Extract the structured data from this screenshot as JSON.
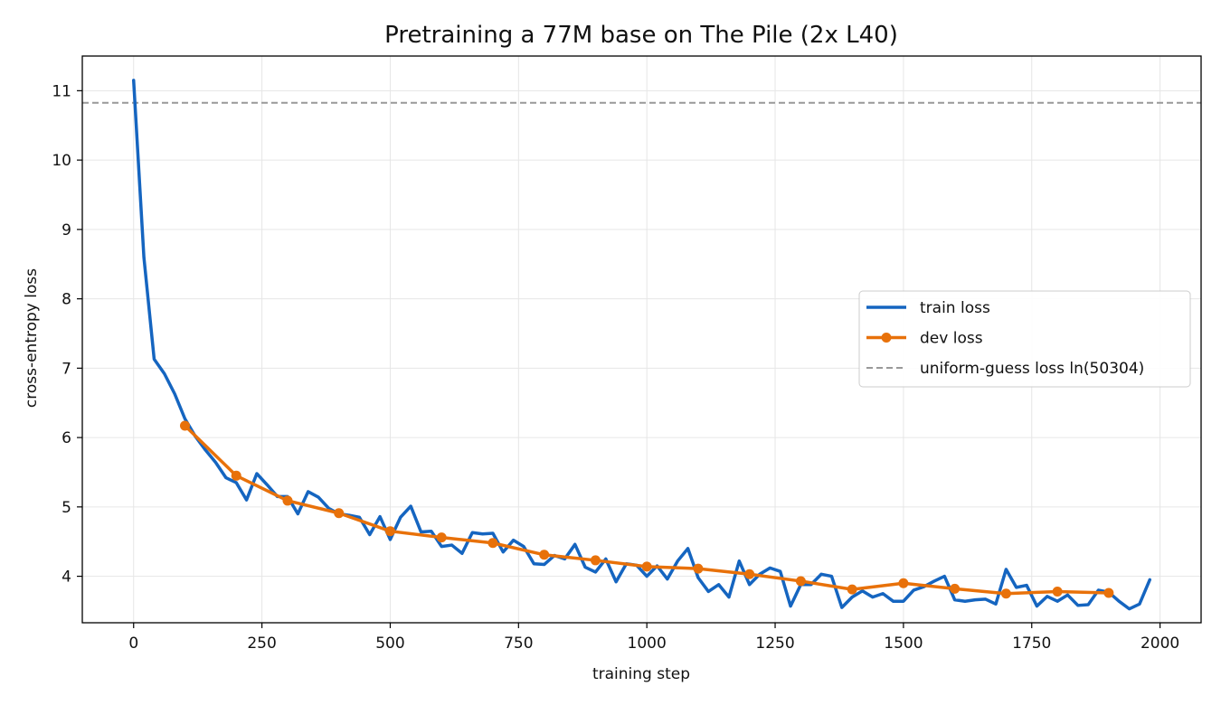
{
  "chart_data": {
    "type": "line",
    "title": "Pretraining a 77M base on The Pile (2x L40)",
    "xlabel": "training step",
    "ylabel": "cross-entropy loss",
    "xlim": [
      -100,
      2080
    ],
    "ylim": [
      3.33,
      11.5
    ],
    "xticks": [
      0,
      250,
      500,
      750,
      1000,
      1250,
      1500,
      1750,
      2000
    ],
    "yticks": [
      4,
      5,
      6,
      7,
      8,
      9,
      10,
      11
    ],
    "grid": true,
    "legend_position": "center-right",
    "series": [
      {
        "name": "train loss",
        "color": "#1565c0",
        "marker": "none",
        "x": [
          0,
          20,
          40,
          60,
          80,
          100,
          120,
          140,
          160,
          180,
          200,
          220,
          240,
          260,
          280,
          300,
          320,
          340,
          360,
          380,
          400,
          420,
          440,
          460,
          480,
          500,
          520,
          540,
          560,
          580,
          600,
          620,
          640,
          660,
          680,
          700,
          720,
          740,
          760,
          780,
          800,
          820,
          840,
          860,
          880,
          900,
          920,
          940,
          960,
          980,
          1000,
          1020,
          1040,
          1060,
          1080,
          1100,
          1120,
          1140,
          1160,
          1180,
          1200,
          1220,
          1240,
          1260,
          1280,
          1300,
          1320,
          1340,
          1360,
          1380,
          1400,
          1420,
          1440,
          1460,
          1480,
          1500,
          1520,
          1540,
          1560,
          1580,
          1600,
          1620,
          1640,
          1660,
          1680,
          1700,
          1720,
          1740,
          1760,
          1780,
          1800,
          1820,
          1840,
          1860,
          1880,
          1900,
          1920,
          1940,
          1960,
          1980
        ],
        "y": [
          11.15,
          8.6,
          7.13,
          6.92,
          6.63,
          6.27,
          6.02,
          5.82,
          5.64,
          5.42,
          5.35,
          5.1,
          5.48,
          5.32,
          5.15,
          5.15,
          4.9,
          5.22,
          5.14,
          4.98,
          4.9,
          4.88,
          4.85,
          4.6,
          4.86,
          4.53,
          4.85,
          5.01,
          4.64,
          4.65,
          4.43,
          4.45,
          4.33,
          4.63,
          4.61,
          4.62,
          4.35,
          4.52,
          4.43,
          4.18,
          4.17,
          4.3,
          4.25,
          4.46,
          4.13,
          4.06,
          4.25,
          3.92,
          4.18,
          4.16,
          4.0,
          4.15,
          3.96,
          4.22,
          4.4,
          3.98,
          3.78,
          3.88,
          3.7,
          4.22,
          3.88,
          4.03,
          4.12,
          4.07,
          3.57,
          3.88,
          3.88,
          4.03,
          4.0,
          3.55,
          3.7,
          3.79,
          3.7,
          3.75,
          3.64,
          3.64,
          3.8,
          3.85,
          3.93,
          4.0,
          3.66,
          3.64,
          3.66,
          3.67,
          3.6,
          4.1,
          3.84,
          3.87,
          3.57,
          3.71,
          3.64,
          3.73,
          3.58,
          3.59,
          3.8,
          3.77,
          3.64,
          3.53,
          3.6,
          3.95
        ]
      },
      {
        "name": "dev loss",
        "color": "#e8710a",
        "marker": "circle",
        "x": [
          100,
          200,
          300,
          400,
          500,
          600,
          700,
          800,
          900,
          1000,
          1100,
          1200,
          1300,
          1400,
          1500,
          1600,
          1700,
          1800,
          1900
        ],
        "y": [
          6.17,
          5.45,
          5.09,
          4.91,
          4.65,
          4.56,
          4.48,
          4.31,
          4.23,
          4.14,
          4.11,
          4.03,
          3.93,
          3.81,
          3.9,
          3.82,
          3.75,
          3.78,
          3.76
        ]
      }
    ],
    "reference_lines": [
      {
        "name": "uniform-guess loss  ln(50304)",
        "y": 10.826,
        "color": "#999999",
        "style": "dashed"
      }
    ]
  }
}
